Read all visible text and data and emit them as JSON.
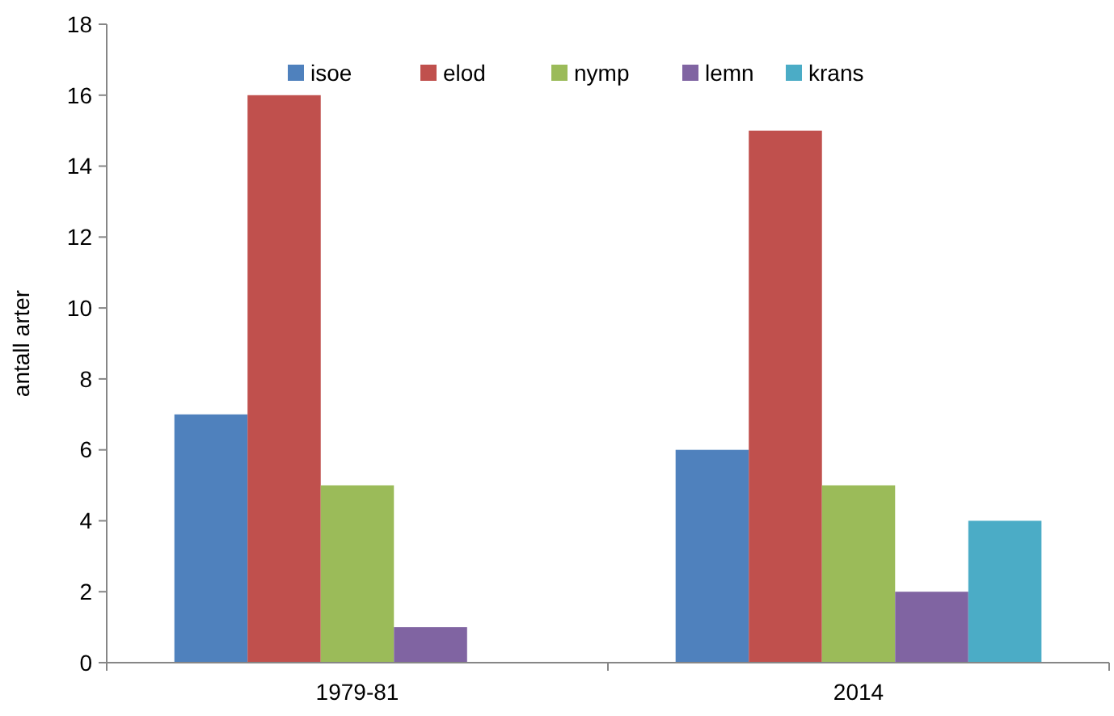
{
  "chart_data": {
    "type": "bar",
    "ylabel": "antall arter",
    "categories": [
      "1979-81",
      "2014"
    ],
    "series": [
      {
        "name": "isoe",
        "color": "#4f81bd",
        "values": [
          7,
          6
        ]
      },
      {
        "name": "elod",
        "color": "#c0504d",
        "values": [
          16,
          15
        ]
      },
      {
        "name": "nymp",
        "color": "#9bbb59",
        "values": [
          5,
          5
        ]
      },
      {
        "name": "lemn",
        "color": "#8064a2",
        "values": [
          1,
          2
        ]
      },
      {
        "name": "krans",
        "color": "#4bacc6",
        "values": [
          null,
          4
        ]
      }
    ],
    "ylim": [
      0,
      18
    ],
    "yticks": [
      0,
      2,
      4,
      6,
      8,
      10,
      12,
      14,
      16,
      18
    ],
    "grid": false,
    "legend": "top"
  }
}
